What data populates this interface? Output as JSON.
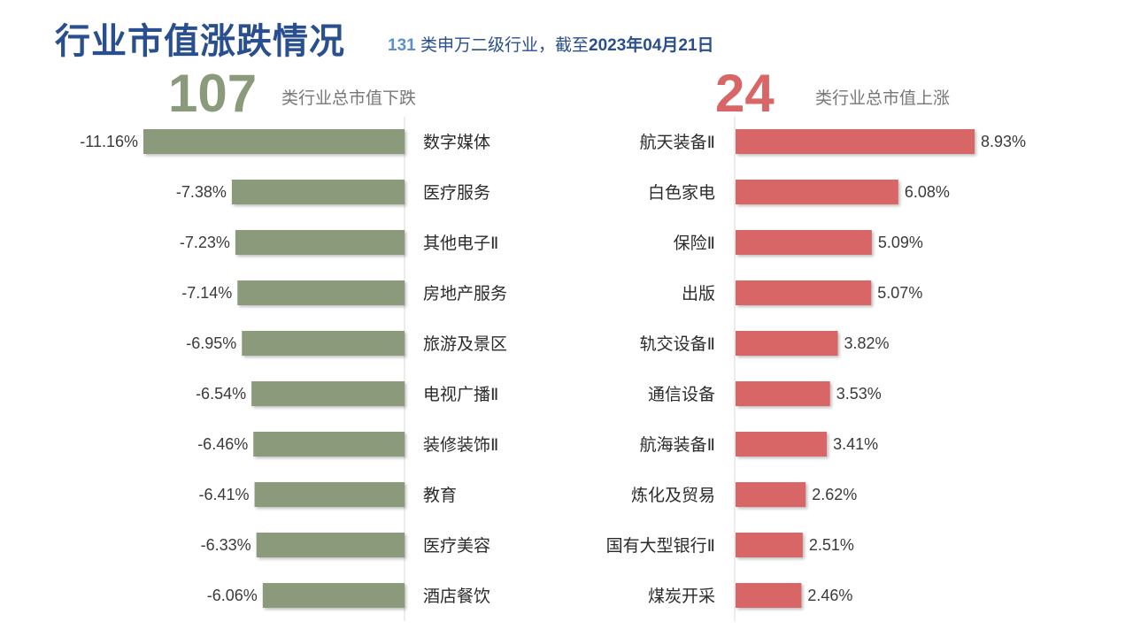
{
  "header": {
    "title": "行业市值涨跌情况",
    "subtitle_count": "131",
    "subtitle_text": "类申万二级行业，截至",
    "subtitle_date": "2023年04月21日"
  },
  "summary": {
    "fall_count": "107",
    "fall_label": "类行业总市值下跌",
    "rise_count": "24",
    "rise_label": "类行业总市值上涨"
  },
  "colors": {
    "title": "#2a4f8f",
    "fall_bar": "#8a9a7a",
    "rise_bar": "#d96666"
  },
  "chart_data": [
    {
      "type": "bar",
      "orientation": "horizontal",
      "categories": [
        "数字媒体",
        "医疗服务",
        "其他电子Ⅱ",
        "房地产服务",
        "旅游及景区",
        "电视广播Ⅱ",
        "装修装饰Ⅱ",
        "教育",
        "医疗美容",
        "酒店餐饮"
      ],
      "values": [
        -11.16,
        -7.38,
        -7.23,
        -7.14,
        -6.95,
        -6.54,
        -6.46,
        -6.41,
        -6.33,
        -6.06
      ],
      "value_labels": [
        "-11.16%",
        "-7.38%",
        "-7.23%",
        "-7.14%",
        "-6.95%",
        "-6.54%",
        "-6.46%",
        "-6.41%",
        "-6.33%",
        "-6.06%"
      ],
      "color": "#8a9a7a"
    },
    {
      "type": "bar",
      "orientation": "horizontal",
      "categories": [
        "航天装备Ⅱ",
        "白色家电",
        "保险Ⅱ",
        "出版",
        "轨交设备Ⅱ",
        "通信设备",
        "航海装备Ⅱ",
        "炼化及贸易",
        "国有大型银行Ⅱ",
        "煤炭开采"
      ],
      "values": [
        8.93,
        6.08,
        5.09,
        5.07,
        3.82,
        3.53,
        3.41,
        2.62,
        2.51,
        2.46
      ],
      "value_labels": [
        "8.93%",
        "6.08%",
        "5.09%",
        "5.07%",
        "3.82%",
        "3.53%",
        "3.41%",
        "2.62%",
        "2.51%",
        "2.46%"
      ],
      "color": "#d96666"
    }
  ]
}
